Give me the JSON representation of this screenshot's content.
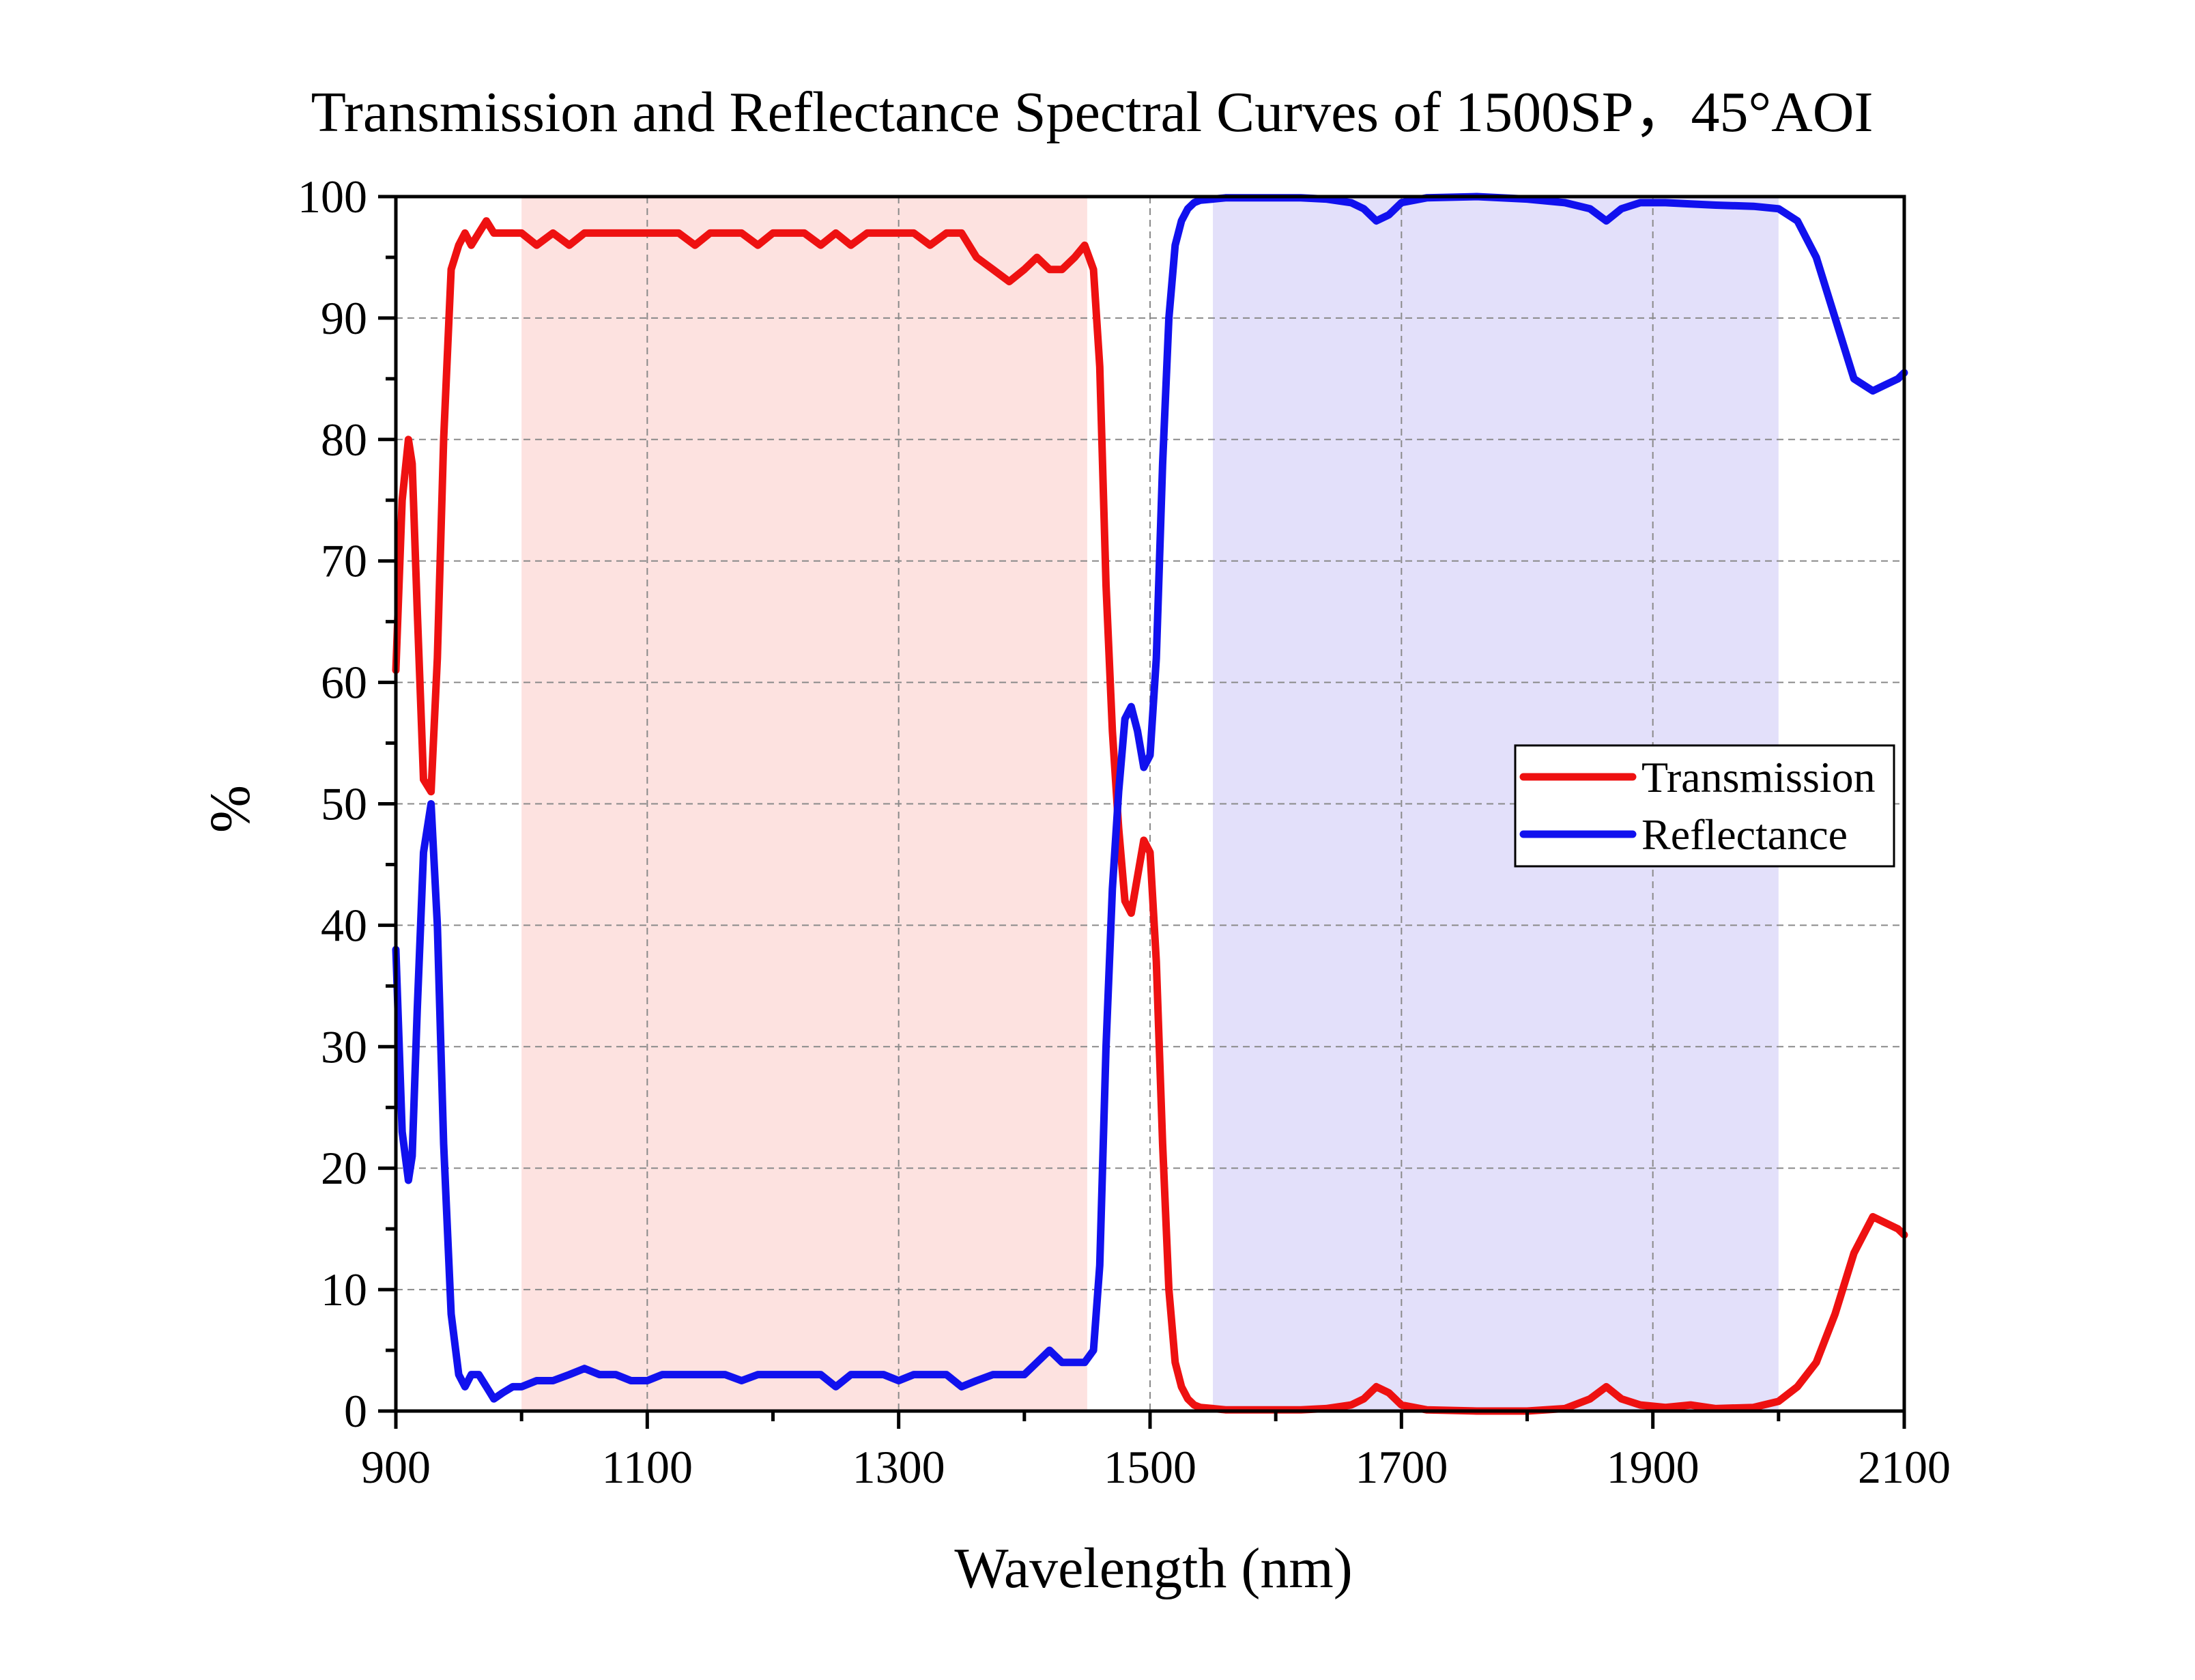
{
  "chart_data": {
    "type": "line",
    "title": "Transmission and Reflectance Spectral Curves of 1500SP，45°AOI",
    "xlabel": "Wavelength (nm)",
    "ylabel": "%",
    "xlim": [
      900,
      2100
    ],
    "ylim": [
      0,
      100
    ],
    "x_ticks": [
      900,
      1100,
      1300,
      1500,
      1700,
      1900,
      2100
    ],
    "y_ticks": [
      0,
      10,
      20,
      30,
      40,
      50,
      60,
      70,
      80,
      90,
      100
    ],
    "grid": true,
    "legend_position": "right",
    "shaded_regions": [
      {
        "x_start": 1000,
        "x_end": 1450,
        "color": "#fde2e0"
      },
      {
        "x_start": 1550,
        "x_end": 2000,
        "color": "#e3e0fa"
      }
    ],
    "series": [
      {
        "name": "Transmission",
        "color": "#ee1111",
        "x": [
          900,
          905,
          910,
          913,
          917,
          922,
          928,
          933,
          938,
          944,
          950,
          955,
          960,
          966,
          972,
          978,
          985,
          993,
          1000,
          1012,
          1025,
          1038,
          1050,
          1062,
          1075,
          1087,
          1100,
          1112,
          1125,
          1138,
          1150,
          1162,
          1175,
          1188,
          1200,
          1212,
          1225,
          1238,
          1250,
          1262,
          1275,
          1288,
          1300,
          1312,
          1325,
          1338,
          1350,
          1362,
          1375,
          1388,
          1400,
          1410,
          1420,
          1430,
          1440,
          1448,
          1455,
          1460,
          1465,
          1470,
          1475,
          1480,
          1485,
          1490,
          1495,
          1500,
          1505,
          1510,
          1515,
          1520,
          1525,
          1530,
          1535,
          1540,
          1550,
          1560,
          1580,
          1600,
          1620,
          1640,
          1660,
          1670,
          1680,
          1690,
          1700,
          1720,
          1760,
          1800,
          1830,
          1850,
          1863,
          1875,
          1890,
          1910,
          1930,
          1950,
          1980,
          2000,
          2015,
          2030,
          2045,
          2060,
          2075,
          2085,
          2095,
          2100
        ],
        "y": [
          61,
          75,
          80,
          78,
          66,
          52,
          51,
          62,
          80,
          94,
          96,
          97,
          96,
          97,
          98,
          97,
          97,
          97,
          97,
          96,
          97,
          96,
          97,
          97,
          97,
          97,
          97,
          97,
          97,
          96,
          97,
          97,
          97,
          96,
          97,
          97,
          97,
          96,
          97,
          96,
          97,
          97,
          97,
          97,
          96,
          97,
          97,
          95,
          94,
          93,
          94,
          95,
          94,
          94,
          95,
          96,
          94,
          86,
          68,
          56,
          48,
          42,
          41,
          44,
          47,
          46,
          37,
          22,
          10,
          4,
          2,
          1,
          0.5,
          0.3,
          0.2,
          0.1,
          0.1,
          0.1,
          0.1,
          0.2,
          0.5,
          1,
          2,
          1.5,
          0.5,
          0.1,
          0,
          0,
          0.2,
          1,
          2,
          1,
          0.5,
          0.3,
          0.5,
          0.2,
          0.3,
          0.8,
          2,
          4,
          8,
          13,
          16,
          15.5,
          15,
          14.5
        ]
      },
      {
        "name": "Reflectance",
        "color": "#1111ee",
        "x": [
          900,
          905,
          910,
          913,
          917,
          922,
          928,
          933,
          938,
          944,
          950,
          955,
          960,
          966,
          972,
          978,
          985,
          993,
          1000,
          1012,
          1025,
          1038,
          1050,
          1062,
          1075,
          1087,
          1100,
          1112,
          1125,
          1138,
          1150,
          1162,
          1175,
          1188,
          1200,
          1212,
          1225,
          1238,
          1250,
          1262,
          1275,
          1288,
          1300,
          1312,
          1325,
          1338,
          1350,
          1362,
          1375,
          1388,
          1400,
          1410,
          1420,
          1430,
          1440,
          1448,
          1455,
          1460,
          1465,
          1470,
          1475,
          1480,
          1485,
          1490,
          1495,
          1500,
          1505,
          1510,
          1515,
          1520,
          1525,
          1530,
          1535,
          1540,
          1550,
          1560,
          1580,
          1600,
          1620,
          1640,
          1660,
          1670,
          1680,
          1690,
          1700,
          1720,
          1760,
          1800,
          1830,
          1850,
          1863,
          1875,
          1890,
          1910,
          1930,
          1950,
          1980,
          2000,
          2015,
          2030,
          2045,
          2060,
          2075,
          2085,
          2095,
          2100
        ],
        "y": [
          38,
          23,
          19,
          21,
          33,
          46,
          50,
          40,
          22,
          8,
          3,
          2,
          3,
          3,
          2,
          1,
          1.5,
          2,
          2,
          2.5,
          2.5,
          3,
          3.5,
          3,
          3,
          2.5,
          2.5,
          3,
          3,
          3,
          3,
          3,
          2.5,
          3,
          3,
          3,
          3,
          3,
          2,
          3,
          3,
          3,
          2.5,
          3,
          3,
          3,
          2,
          2.5,
          3,
          3,
          3,
          4,
          5,
          4,
          4,
          4,
          5,
          12,
          30,
          43,
          51,
          57,
          58,
          56,
          53,
          54,
          62,
          78,
          90,
          96,
          98,
          99,
          99.5,
          99.7,
          99.8,
          99.9,
          99.9,
          99.9,
          99.9,
          99.8,
          99.5,
          99,
          98,
          98.5,
          99.5,
          99.9,
          100,
          99.8,
          99.5,
          99,
          98,
          99,
          99.5,
          99.5,
          99.4,
          99.3,
          99.2,
          99,
          98,
          95,
          90,
          85,
          84,
          84.5,
          85,
          85.5
        ]
      }
    ]
  }
}
